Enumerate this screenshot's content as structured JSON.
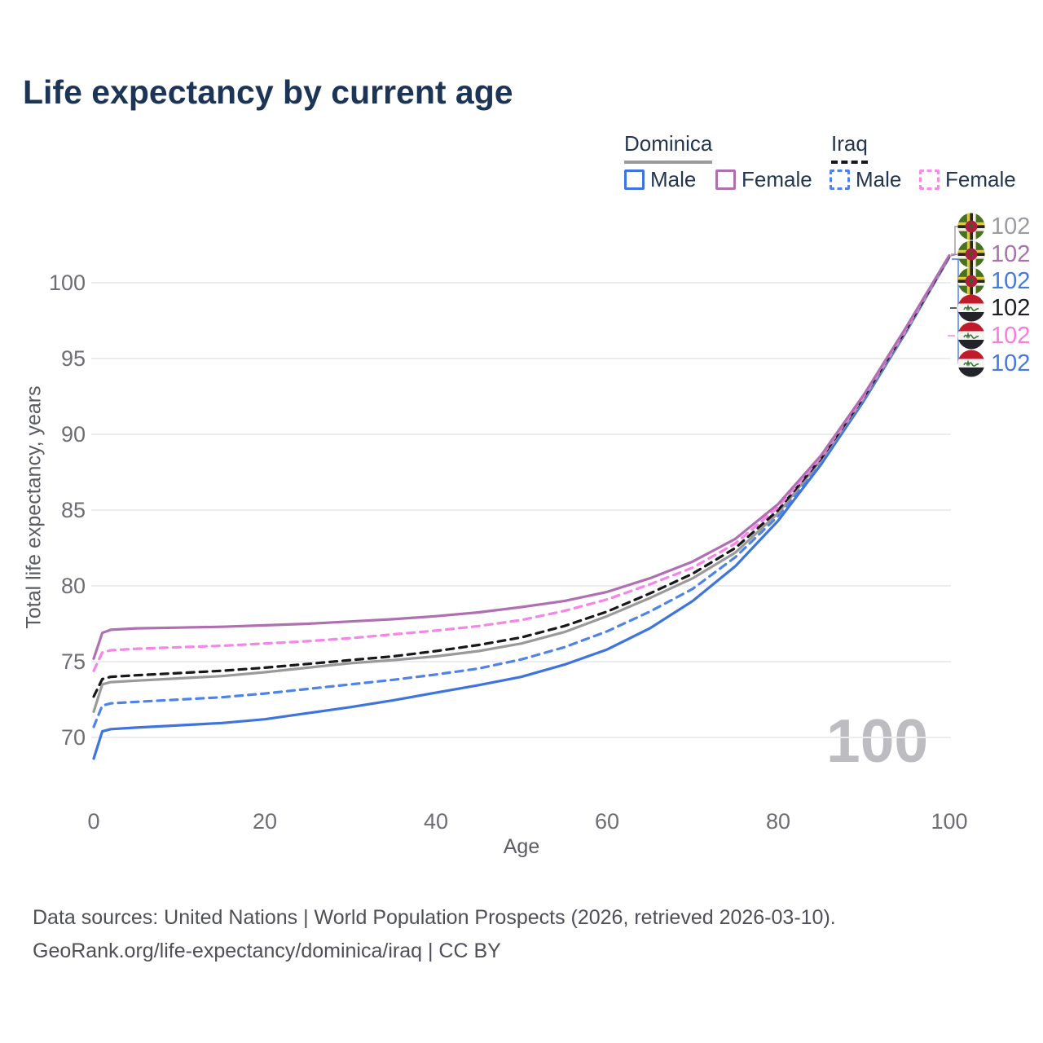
{
  "title": "Life expectancy by current age",
  "watermark": "100",
  "legend": {
    "groups": [
      {
        "label": "Dominica",
        "line_style": "solid",
        "line_color": "#9b9b9b"
      },
      {
        "label": "Iraq",
        "line_style": "dashed",
        "line_color": "#16161c"
      }
    ],
    "items": [
      {
        "label": "Male",
        "color": "#3d74dd",
        "dashed": false
      },
      {
        "label": "Female",
        "color": "#b06fb1",
        "dashed": false
      },
      {
        "label": "Male",
        "color": "#4f83e8",
        "dashed": true
      },
      {
        "label": "Female",
        "color": "#f98ae6",
        "dashed": true
      }
    ]
  },
  "axes": {
    "y_title": "Total life expectancy, years",
    "x_title": "Age",
    "y_ticks": [
      70,
      75,
      80,
      85,
      90,
      95,
      100
    ],
    "x_ticks": [
      0,
      20,
      40,
      60,
      80,
      100
    ]
  },
  "end_labels": [
    {
      "flag": "dominica",
      "value": "102",
      "color": "#9b9ba1",
      "series": "Dominica Both sexes"
    },
    {
      "flag": "dominica",
      "value": "102",
      "color": "#a872aa",
      "series": "Dominica Female"
    },
    {
      "flag": "dominica",
      "value": "102",
      "color": "#4479e1",
      "series": "Dominica Male"
    },
    {
      "flag": "iraq",
      "value": "102",
      "color": "#1c1d22",
      "series": "Iraq Both sexes"
    },
    {
      "flag": "iraq",
      "value": "102",
      "color": "#fb7ae0",
      "series": "Iraq Female"
    },
    {
      "flag": "iraq",
      "value": "102",
      "color": "#4479e1",
      "series": "Iraq Male"
    }
  ],
  "footer": {
    "line1": "Data sources: United Nations | World Population Prospects (2026, retrieved 2026-03-10).",
    "line2": "GeoRank.org/life-expectancy/dominica/iraq | CC BY"
  },
  "chart_data": {
    "type": "line",
    "title": "Life expectancy by current age",
    "xlabel": "Age",
    "ylabel": "Total life expectancy, years",
    "xlim": [
      0,
      100
    ],
    "ylim": [
      67.5,
      103
    ],
    "x_ticks": [
      0,
      20,
      40,
      60,
      80,
      100
    ],
    "y_ticks": [
      70,
      75,
      80,
      85,
      90,
      95,
      100
    ],
    "grid": "horizontal",
    "legend_position": "top-right",
    "x": [
      0,
      1,
      2,
      5,
      10,
      15,
      20,
      25,
      30,
      35,
      40,
      45,
      50,
      55,
      60,
      65,
      70,
      75,
      80,
      85,
      90,
      95,
      100
    ],
    "series": [
      {
        "name": "Dominica Male",
        "country": "Dominica",
        "sex": "Male",
        "color": "#3d74dd",
        "dash": "solid",
        "values": [
          68.6,
          70.4,
          70.55,
          70.65,
          70.8,
          70.95,
          71.2,
          71.6,
          72.0,
          72.45,
          72.95,
          73.45,
          74.0,
          74.8,
          75.8,
          77.2,
          79.0,
          81.3,
          84.3,
          88.0,
          92.2,
          96.8,
          101.7
        ]
      },
      {
        "name": "Iraq Male",
        "country": "Iraq",
        "sex": "Male",
        "color": "#4f83e8",
        "dash": "dashed",
        "values": [
          70.7,
          72.1,
          72.25,
          72.35,
          72.5,
          72.65,
          72.9,
          73.2,
          73.5,
          73.8,
          74.15,
          74.55,
          75.15,
          75.95,
          77.0,
          78.3,
          79.8,
          81.9,
          84.6,
          88.2,
          92.3,
          96.85,
          101.7
        ]
      },
      {
        "name": "Dominica Both sexes",
        "country": "Dominica",
        "sex": "Both",
        "color": "#9a9a9a",
        "dash": "solid",
        "values": [
          71.7,
          73.5,
          73.65,
          73.75,
          73.9,
          74.05,
          74.3,
          74.6,
          74.9,
          75.1,
          75.35,
          75.7,
          76.2,
          76.95,
          78.0,
          79.2,
          80.5,
          82.2,
          84.8,
          88.3,
          92.4,
          96.9,
          101.75
        ]
      },
      {
        "name": "Iraq Both sexes",
        "country": "Iraq",
        "sex": "Both",
        "color": "#17171c",
        "dash": "dashed",
        "values": [
          72.7,
          73.85,
          74.0,
          74.1,
          74.25,
          74.4,
          74.6,
          74.85,
          75.1,
          75.35,
          75.7,
          76.1,
          76.6,
          77.35,
          78.3,
          79.5,
          80.8,
          82.5,
          85.0,
          88.4,
          92.45,
          96.95,
          101.75
        ]
      },
      {
        "name": "Iraq Female",
        "country": "Iraq",
        "sex": "Female",
        "color": "#f884e8",
        "dash": "dashed",
        "values": [
          74.4,
          75.6,
          75.75,
          75.85,
          75.95,
          76.05,
          76.2,
          76.35,
          76.55,
          76.8,
          77.05,
          77.35,
          77.75,
          78.35,
          79.1,
          80.1,
          81.2,
          82.8,
          85.2,
          88.5,
          92.5,
          97.0,
          101.8
        ]
      },
      {
        "name": "Dominica Female",
        "country": "Dominica",
        "sex": "Female",
        "color": "#b06fb1",
        "dash": "solid",
        "values": [
          75.2,
          76.9,
          77.1,
          77.2,
          77.25,
          77.3,
          77.4,
          77.5,
          77.65,
          77.8,
          78.0,
          78.25,
          78.6,
          79.0,
          79.6,
          80.5,
          81.6,
          83.1,
          85.4,
          88.6,
          92.6,
          97.1,
          101.8
        ]
      }
    ]
  }
}
